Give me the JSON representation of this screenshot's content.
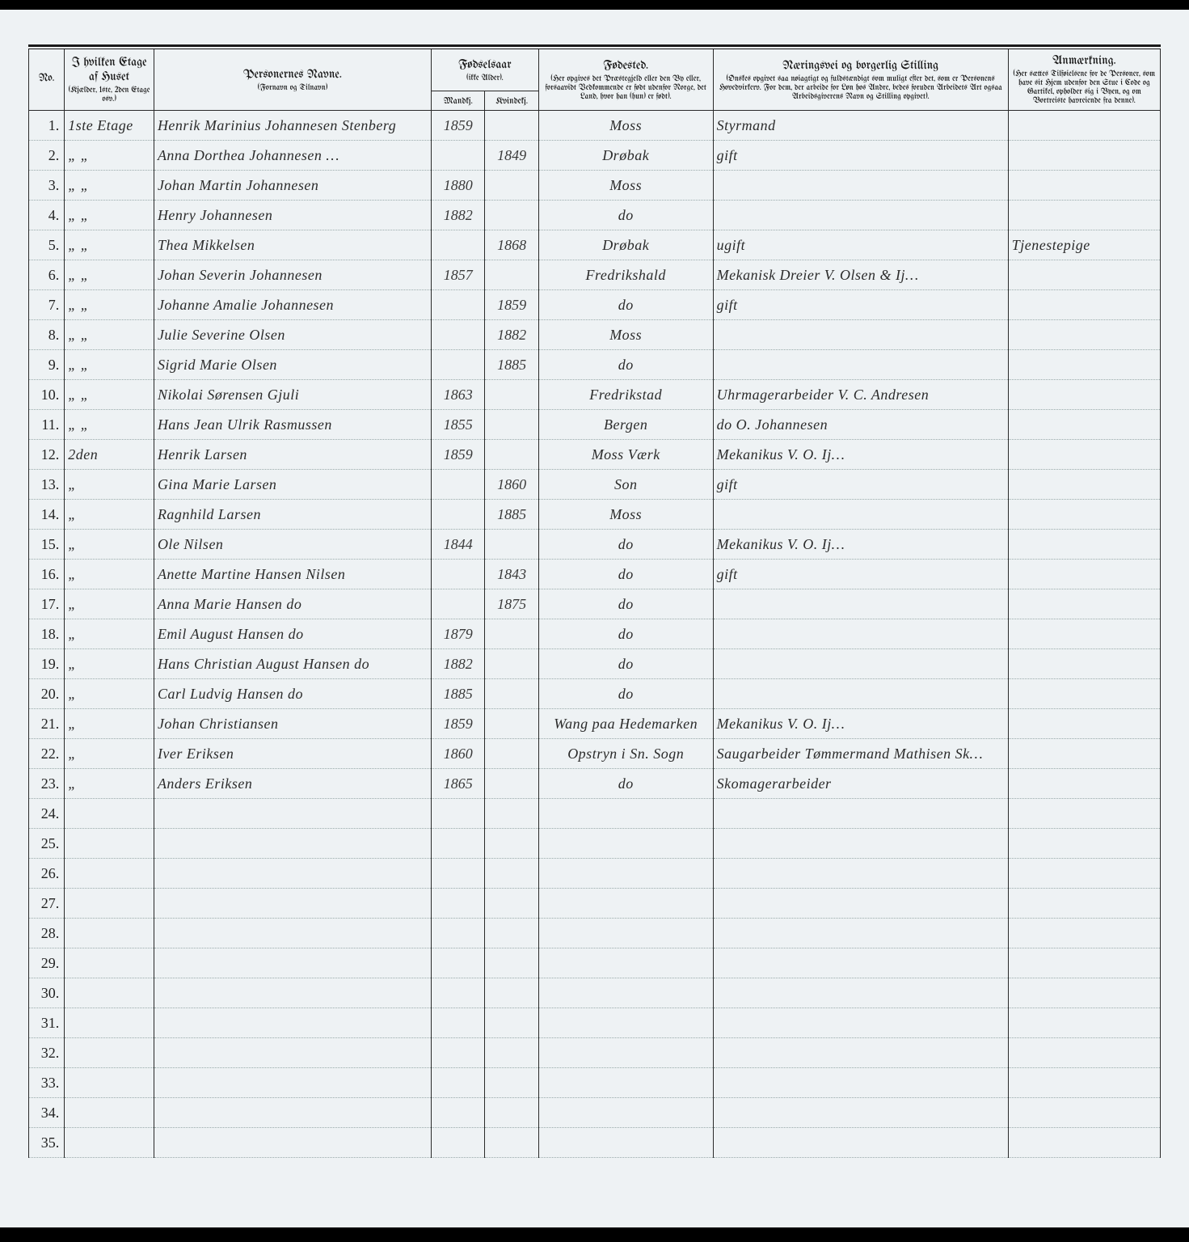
{
  "headers": {
    "no": "No.",
    "etage": {
      "main": "I hvilken Etage af Huset",
      "sub": "(Kjælder, 1ste, 2den Etage osv.)"
    },
    "name": {
      "main": "Personernes Navne.",
      "sub": "(Fornavn og Tilnavn)"
    },
    "year": {
      "main": "Fødselsaar",
      "sub": "(ikke Alder)."
    },
    "year_m": "Mandkj.",
    "year_f": "Kvindekj.",
    "birthplace": {
      "main": "Fødested.",
      "sub": "(Her opgives det Præstegjeld eller den By eller, forsaavidt Vedkommende er født udenfor Norge, det Land, hvor han (hun) er født)."
    },
    "occupation": {
      "main": "Næringsvei og borgerlig Stilling",
      "sub": "(Ønskes opgivet saa nøiagtigt og fuldstændigt som muligt efter det, som er Personens Hovedvirkerv. For dem, der arbeide for Løn hos Andre, bedes foruden Arbeidets Art ogsaa Arbeidsgiverens Navn og Stilling opgivet)."
    },
    "remarks": {
      "main": "Anmærkning.",
      "sub": "(Her sættes Tilføielsene for de Personer, som have sit Hjem udenfor den Stue i Code og Gartikel, opholder sig i Byen, og om Bortreiste havreiende fra denne)."
    }
  },
  "rows": [
    {
      "no": "1.",
      "etage": "1ste Etage",
      "name": "Henrik Marinius Johannesen Stenberg",
      "ym": "1859",
      "yf": "",
      "birth": "Moss",
      "occ": "Styrmand",
      "rem": ""
    },
    {
      "no": "2.",
      "etage": "„  „",
      "name": "Anna Dorthea Johannesen …",
      "ym": "",
      "yf": "1849",
      "birth": "Drøbak",
      "occ": "gift",
      "rem": ""
    },
    {
      "no": "3.",
      "etage": "„  „",
      "name": "Johan Martin Johannesen",
      "ym": "1880",
      "yf": "",
      "birth": "Moss",
      "occ": "",
      "rem": ""
    },
    {
      "no": "4.",
      "etage": "„  „",
      "name": "Henry Johannesen",
      "ym": "1882",
      "yf": "",
      "birth": "do",
      "occ": "",
      "rem": ""
    },
    {
      "no": "5.",
      "etage": "„  „",
      "name": "Thea Mikkelsen",
      "ym": "",
      "yf": "1868",
      "birth": "Drøbak",
      "occ": "ugift",
      "rem": "Tjenestepige"
    },
    {
      "no": "6.",
      "etage": "„  „",
      "name": "Johan Severin Johannesen",
      "ym": "1857",
      "yf": "",
      "birth": "Fredrikshald",
      "occ": "Mekanisk Dreier  V. Olsen & Ij…",
      "rem": ""
    },
    {
      "no": "7.",
      "etage": "„  „",
      "name": "Johanne Amalie Johannesen",
      "ym": "",
      "yf": "1859",
      "birth": "do",
      "occ": "gift",
      "rem": ""
    },
    {
      "no": "8.",
      "etage": "„  „",
      "name": "Julie Severine Olsen",
      "ym": "",
      "yf": "1882",
      "birth": "Moss",
      "occ": "",
      "rem": ""
    },
    {
      "no": "9.",
      "etage": "„  „",
      "name": "Sigrid Marie Olsen",
      "ym": "",
      "yf": "1885",
      "birth": "do",
      "occ": "",
      "rem": ""
    },
    {
      "no": "10.",
      "etage": "„  „",
      "name": "Nikolai Sørensen Gjuli",
      "ym": "1863",
      "yf": "",
      "birth": "Fredrikstad",
      "occ": "Uhrmagerarbeider  V. C. Andresen",
      "rem": ""
    },
    {
      "no": "11.",
      "etage": "„  „",
      "name": "Hans Jean Ulrik Rasmussen",
      "ym": "1855",
      "yf": "",
      "birth": "Bergen",
      "occ": "do     O. Johannesen",
      "rem": ""
    },
    {
      "no": "12.",
      "etage": "2den",
      "name": "Henrik Larsen",
      "ym": "1859",
      "yf": "",
      "birth": "Moss Værk",
      "occ": "Mekanikus  V. O. Ij…",
      "rem": ""
    },
    {
      "no": "13.",
      "etage": "„",
      "name": "Gina Marie Larsen",
      "ym": "",
      "yf": "1860",
      "birth": "Son",
      "occ": "gift",
      "rem": ""
    },
    {
      "no": "14.",
      "etage": "„",
      "name": "Ragnhild Larsen",
      "ym": "",
      "yf": "1885",
      "birth": "Moss",
      "occ": "",
      "rem": ""
    },
    {
      "no": "15.",
      "etage": "„",
      "name": "Ole Nilsen",
      "ym": "1844",
      "yf": "",
      "birth": "do",
      "occ": "Mekanikus  V. O. Ij…",
      "rem": ""
    },
    {
      "no": "16.",
      "etage": "„",
      "name": "Anette Martine Hansen Nilsen",
      "ym": "",
      "yf": "1843",
      "birth": "do",
      "occ": "gift",
      "rem": ""
    },
    {
      "no": "17.",
      "etage": "„",
      "name": "Anna Marie Hansen   do",
      "ym": "",
      "yf": "1875",
      "birth": "do",
      "occ": "",
      "rem": ""
    },
    {
      "no": "18.",
      "etage": "„",
      "name": "Emil August Hansen   do",
      "ym": "1879",
      "yf": "",
      "birth": "do",
      "occ": "",
      "rem": ""
    },
    {
      "no": "19.",
      "etage": "„",
      "name": "Hans Christian August Hansen do",
      "ym": "1882",
      "yf": "",
      "birth": "do",
      "occ": "",
      "rem": ""
    },
    {
      "no": "20.",
      "etage": "„",
      "name": "Carl Ludvig Hansen   do",
      "ym": "1885",
      "yf": "",
      "birth": "do",
      "occ": "",
      "rem": ""
    },
    {
      "no": "21.",
      "etage": "„",
      "name": "Johan Christiansen",
      "ym": "1859",
      "yf": "",
      "birth": "Wang paa Hedemarken",
      "occ": "Mekanikus  V. O. Ij…",
      "rem": ""
    },
    {
      "no": "22.",
      "etage": "„",
      "name": "Iver Eriksen",
      "ym": "1860",
      "yf": "",
      "birth": "Opstryn i Sn. Sogn",
      "occ": "Saugarbeider Tømmermand Mathisen Sk…",
      "rem": ""
    },
    {
      "no": "23.",
      "etage": "„",
      "name": "Anders Eriksen",
      "ym": "1865",
      "yf": "",
      "birth": "do",
      "occ": "Skomagerarbeider",
      "rem": ""
    },
    {
      "no": "24.",
      "etage": "",
      "name": "",
      "ym": "",
      "yf": "",
      "birth": "",
      "occ": "",
      "rem": ""
    },
    {
      "no": "25.",
      "etage": "",
      "name": "",
      "ym": "",
      "yf": "",
      "birth": "",
      "occ": "",
      "rem": ""
    },
    {
      "no": "26.",
      "etage": "",
      "name": "",
      "ym": "",
      "yf": "",
      "birth": "",
      "occ": "",
      "rem": ""
    },
    {
      "no": "27.",
      "etage": "",
      "name": "",
      "ym": "",
      "yf": "",
      "birth": "",
      "occ": "",
      "rem": ""
    },
    {
      "no": "28.",
      "etage": "",
      "name": "",
      "ym": "",
      "yf": "",
      "birth": "",
      "occ": "",
      "rem": ""
    },
    {
      "no": "29.",
      "etage": "",
      "name": "",
      "ym": "",
      "yf": "",
      "birth": "",
      "occ": "",
      "rem": ""
    },
    {
      "no": "30.",
      "etage": "",
      "name": "",
      "ym": "",
      "yf": "",
      "birth": "",
      "occ": "",
      "rem": ""
    },
    {
      "no": "31.",
      "etage": "",
      "name": "",
      "ym": "",
      "yf": "",
      "birth": "",
      "occ": "",
      "rem": ""
    },
    {
      "no": "32.",
      "etage": "",
      "name": "",
      "ym": "",
      "yf": "",
      "birth": "",
      "occ": "",
      "rem": ""
    },
    {
      "no": "33.",
      "etage": "",
      "name": "",
      "ym": "",
      "yf": "",
      "birth": "",
      "occ": "",
      "rem": ""
    },
    {
      "no": "34.",
      "etage": "",
      "name": "",
      "ym": "",
      "yf": "",
      "birth": "",
      "occ": "",
      "rem": ""
    },
    {
      "no": "35.",
      "etage": "",
      "name": "",
      "ym": "",
      "yf": "",
      "birth": "",
      "occ": "",
      "rem": ""
    }
  ]
}
